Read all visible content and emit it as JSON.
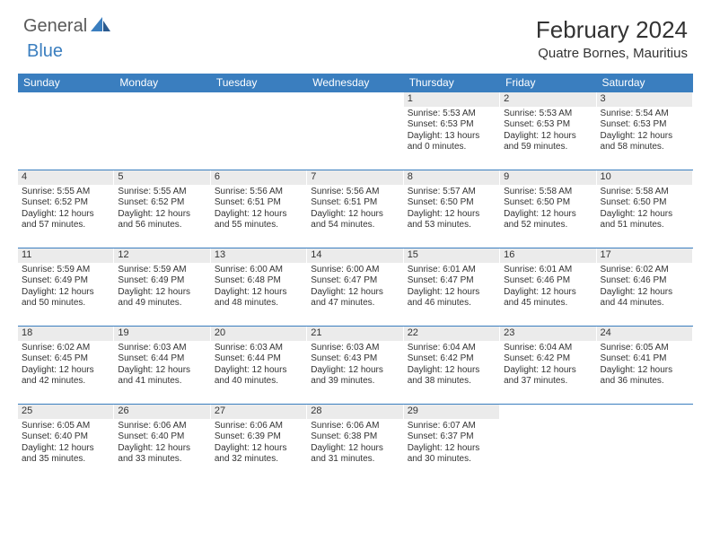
{
  "logo": {
    "text1": "General",
    "text2": "Blue"
  },
  "title": "February 2024",
  "location": "Quatre Bornes, Mauritius",
  "colors": {
    "header_bg": "#3a7ebf",
    "daynum_bg": "#ebebeb",
    "text": "#333333",
    "border": "#3a7ebf"
  },
  "day_headers": [
    "Sunday",
    "Monday",
    "Tuesday",
    "Wednesday",
    "Thursday",
    "Friday",
    "Saturday"
  ],
  "weeks": [
    [
      null,
      null,
      null,
      null,
      {
        "num": "1",
        "sunrise": "Sunrise: 5:53 AM",
        "sunset": "Sunset: 6:53 PM",
        "daylight": "Daylight: 13 hours and 0 minutes."
      },
      {
        "num": "2",
        "sunrise": "Sunrise: 5:53 AM",
        "sunset": "Sunset: 6:53 PM",
        "daylight": "Daylight: 12 hours and 59 minutes."
      },
      {
        "num": "3",
        "sunrise": "Sunrise: 5:54 AM",
        "sunset": "Sunset: 6:53 PM",
        "daylight": "Daylight: 12 hours and 58 minutes."
      }
    ],
    [
      {
        "num": "4",
        "sunrise": "Sunrise: 5:55 AM",
        "sunset": "Sunset: 6:52 PM",
        "daylight": "Daylight: 12 hours and 57 minutes."
      },
      {
        "num": "5",
        "sunrise": "Sunrise: 5:55 AM",
        "sunset": "Sunset: 6:52 PM",
        "daylight": "Daylight: 12 hours and 56 minutes."
      },
      {
        "num": "6",
        "sunrise": "Sunrise: 5:56 AM",
        "sunset": "Sunset: 6:51 PM",
        "daylight": "Daylight: 12 hours and 55 minutes."
      },
      {
        "num": "7",
        "sunrise": "Sunrise: 5:56 AM",
        "sunset": "Sunset: 6:51 PM",
        "daylight": "Daylight: 12 hours and 54 minutes."
      },
      {
        "num": "8",
        "sunrise": "Sunrise: 5:57 AM",
        "sunset": "Sunset: 6:50 PM",
        "daylight": "Daylight: 12 hours and 53 minutes."
      },
      {
        "num": "9",
        "sunrise": "Sunrise: 5:58 AM",
        "sunset": "Sunset: 6:50 PM",
        "daylight": "Daylight: 12 hours and 52 minutes."
      },
      {
        "num": "10",
        "sunrise": "Sunrise: 5:58 AM",
        "sunset": "Sunset: 6:50 PM",
        "daylight": "Daylight: 12 hours and 51 minutes."
      }
    ],
    [
      {
        "num": "11",
        "sunrise": "Sunrise: 5:59 AM",
        "sunset": "Sunset: 6:49 PM",
        "daylight": "Daylight: 12 hours and 50 minutes."
      },
      {
        "num": "12",
        "sunrise": "Sunrise: 5:59 AM",
        "sunset": "Sunset: 6:49 PM",
        "daylight": "Daylight: 12 hours and 49 minutes."
      },
      {
        "num": "13",
        "sunrise": "Sunrise: 6:00 AM",
        "sunset": "Sunset: 6:48 PM",
        "daylight": "Daylight: 12 hours and 48 minutes."
      },
      {
        "num": "14",
        "sunrise": "Sunrise: 6:00 AM",
        "sunset": "Sunset: 6:47 PM",
        "daylight": "Daylight: 12 hours and 47 minutes."
      },
      {
        "num": "15",
        "sunrise": "Sunrise: 6:01 AM",
        "sunset": "Sunset: 6:47 PM",
        "daylight": "Daylight: 12 hours and 46 minutes."
      },
      {
        "num": "16",
        "sunrise": "Sunrise: 6:01 AM",
        "sunset": "Sunset: 6:46 PM",
        "daylight": "Daylight: 12 hours and 45 minutes."
      },
      {
        "num": "17",
        "sunrise": "Sunrise: 6:02 AM",
        "sunset": "Sunset: 6:46 PM",
        "daylight": "Daylight: 12 hours and 44 minutes."
      }
    ],
    [
      {
        "num": "18",
        "sunrise": "Sunrise: 6:02 AM",
        "sunset": "Sunset: 6:45 PM",
        "daylight": "Daylight: 12 hours and 42 minutes."
      },
      {
        "num": "19",
        "sunrise": "Sunrise: 6:03 AM",
        "sunset": "Sunset: 6:44 PM",
        "daylight": "Daylight: 12 hours and 41 minutes."
      },
      {
        "num": "20",
        "sunrise": "Sunrise: 6:03 AM",
        "sunset": "Sunset: 6:44 PM",
        "daylight": "Daylight: 12 hours and 40 minutes."
      },
      {
        "num": "21",
        "sunrise": "Sunrise: 6:03 AM",
        "sunset": "Sunset: 6:43 PM",
        "daylight": "Daylight: 12 hours and 39 minutes."
      },
      {
        "num": "22",
        "sunrise": "Sunrise: 6:04 AM",
        "sunset": "Sunset: 6:42 PM",
        "daylight": "Daylight: 12 hours and 38 minutes."
      },
      {
        "num": "23",
        "sunrise": "Sunrise: 6:04 AM",
        "sunset": "Sunset: 6:42 PM",
        "daylight": "Daylight: 12 hours and 37 minutes."
      },
      {
        "num": "24",
        "sunrise": "Sunrise: 6:05 AM",
        "sunset": "Sunset: 6:41 PM",
        "daylight": "Daylight: 12 hours and 36 minutes."
      }
    ],
    [
      {
        "num": "25",
        "sunrise": "Sunrise: 6:05 AM",
        "sunset": "Sunset: 6:40 PM",
        "daylight": "Daylight: 12 hours and 35 minutes."
      },
      {
        "num": "26",
        "sunrise": "Sunrise: 6:06 AM",
        "sunset": "Sunset: 6:40 PM",
        "daylight": "Daylight: 12 hours and 33 minutes."
      },
      {
        "num": "27",
        "sunrise": "Sunrise: 6:06 AM",
        "sunset": "Sunset: 6:39 PM",
        "daylight": "Daylight: 12 hours and 32 minutes."
      },
      {
        "num": "28",
        "sunrise": "Sunrise: 6:06 AM",
        "sunset": "Sunset: 6:38 PM",
        "daylight": "Daylight: 12 hours and 31 minutes."
      },
      {
        "num": "29",
        "sunrise": "Sunrise: 6:07 AM",
        "sunset": "Sunset: 6:37 PM",
        "daylight": "Daylight: 12 hours and 30 minutes."
      },
      null,
      null
    ]
  ]
}
